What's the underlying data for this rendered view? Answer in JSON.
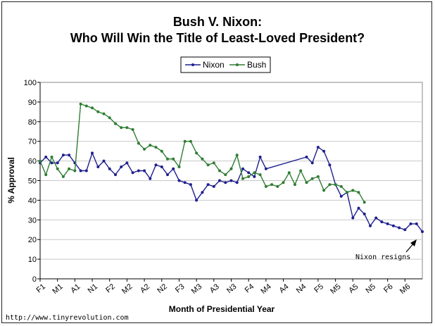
{
  "chart_data": {
    "type": "line",
    "title_line1": "Bush V. Nixon:",
    "title_line2": "Who Will Win the Title of Least-Loved President?",
    "xlabel": "Month of Presidential Year",
    "ylabel": "% Approval",
    "ylim": [
      0,
      100
    ],
    "yticks": [
      "0",
      "10",
      "20",
      "30",
      "40",
      "50",
      "60",
      "70",
      "80",
      "90",
      "100"
    ],
    "x_tick_labels": [
      "F1",
      "M1",
      "A1",
      "N1",
      "F2",
      "M2",
      "A2",
      "N2",
      "F3",
      "M3",
      "A3",
      "N3",
      "F4",
      "M4",
      "A4",
      "N4",
      "F5",
      "M5",
      "A5",
      "N5",
      "F6",
      "M6"
    ],
    "grid": "horizontal",
    "legend_position": "top-center",
    "series": [
      {
        "name": "Nixon",
        "color": "#1f1f8f",
        "points": [
          [
            0,
            59
          ],
          [
            1,
            62
          ],
          [
            2,
            59
          ],
          [
            3,
            59
          ],
          [
            4,
            63
          ],
          [
            5,
            63
          ],
          [
            6,
            59
          ],
          [
            7,
            55
          ],
          [
            8,
            55
          ],
          [
            9,
            64
          ],
          [
            10,
            57
          ],
          [
            11,
            60
          ],
          [
            12,
            56
          ],
          [
            13,
            53
          ],
          [
            14,
            57
          ],
          [
            15,
            59
          ],
          [
            16,
            54
          ],
          [
            17,
            55
          ],
          [
            18,
            55
          ],
          [
            19,
            51
          ],
          [
            20,
            58
          ],
          [
            21,
            57
          ],
          [
            22,
            53
          ],
          [
            23,
            56
          ],
          [
            24,
            50
          ],
          [
            25,
            49
          ],
          [
            26,
            48
          ],
          [
            27,
            40
          ],
          [
            28,
            44
          ],
          [
            29,
            48
          ],
          [
            30,
            47
          ],
          [
            31,
            50
          ],
          [
            32,
            49
          ],
          [
            33,
            50
          ],
          [
            34,
            49
          ],
          [
            35,
            56
          ],
          [
            36,
            54
          ],
          [
            37,
            52
          ],
          [
            38,
            62
          ],
          [
            39,
            56
          ],
          [
            46,
            62
          ],
          [
            47,
            59
          ],
          [
            48,
            67
          ],
          [
            49,
            65
          ],
          [
            50,
            58
          ],
          [
            51,
            48
          ],
          [
            52,
            42
          ],
          [
            53,
            44
          ],
          [
            54,
            31
          ],
          [
            55,
            36
          ],
          [
            56,
            33
          ],
          [
            57,
            27
          ],
          [
            58,
            31
          ],
          [
            59,
            29
          ],
          [
            60,
            28
          ],
          [
            61,
            27
          ],
          [
            62,
            26
          ],
          [
            63,
            25
          ],
          [
            64,
            28
          ],
          [
            65,
            28
          ],
          [
            66,
            24
          ]
        ]
      },
      {
        "name": "Bush",
        "color": "#2e7d32",
        "points": [
          [
            0,
            60
          ],
          [
            1,
            53
          ],
          [
            2,
            62
          ],
          [
            3,
            56
          ],
          [
            4,
            52
          ],
          [
            5,
            56
          ],
          [
            6,
            55
          ],
          [
            7,
            89
          ],
          [
            8,
            88
          ],
          [
            9,
            87
          ],
          [
            10,
            85
          ],
          [
            11,
            84
          ],
          [
            12,
            82
          ],
          [
            13,
            79
          ],
          [
            14,
            77
          ],
          [
            15,
            77
          ],
          [
            16,
            76
          ],
          [
            17,
            69
          ],
          [
            18,
            66
          ],
          [
            19,
            68
          ],
          [
            20,
            67
          ],
          [
            21,
            65
          ],
          [
            22,
            61
          ],
          [
            23,
            61
          ],
          [
            24,
            57
          ],
          [
            25,
            70
          ],
          [
            26,
            70
          ],
          [
            27,
            64
          ],
          [
            28,
            61
          ],
          [
            29,
            58
          ],
          [
            30,
            59
          ],
          [
            31,
            55
          ],
          [
            32,
            53
          ],
          [
            33,
            56
          ],
          [
            34,
            63
          ],
          [
            35,
            51
          ],
          [
            36,
            52
          ],
          [
            37,
            54
          ],
          [
            38,
            53
          ],
          [
            39,
            47
          ],
          [
            40,
            48
          ],
          [
            41,
            47
          ],
          [
            42,
            49
          ],
          [
            43,
            54
          ],
          [
            44,
            48
          ],
          [
            45,
            55
          ],
          [
            46,
            49
          ],
          [
            47,
            51
          ],
          [
            48,
            52
          ],
          [
            49,
            45
          ],
          [
            50,
            48
          ],
          [
            51,
            48
          ],
          [
            52,
            47
          ],
          [
            53,
            44
          ],
          [
            54,
            45
          ],
          [
            55,
            44
          ],
          [
            56,
            39
          ]
        ]
      }
    ],
    "annotation": "Nixon resigns"
  },
  "source_credit": "http://www.tinyrevolution.com"
}
